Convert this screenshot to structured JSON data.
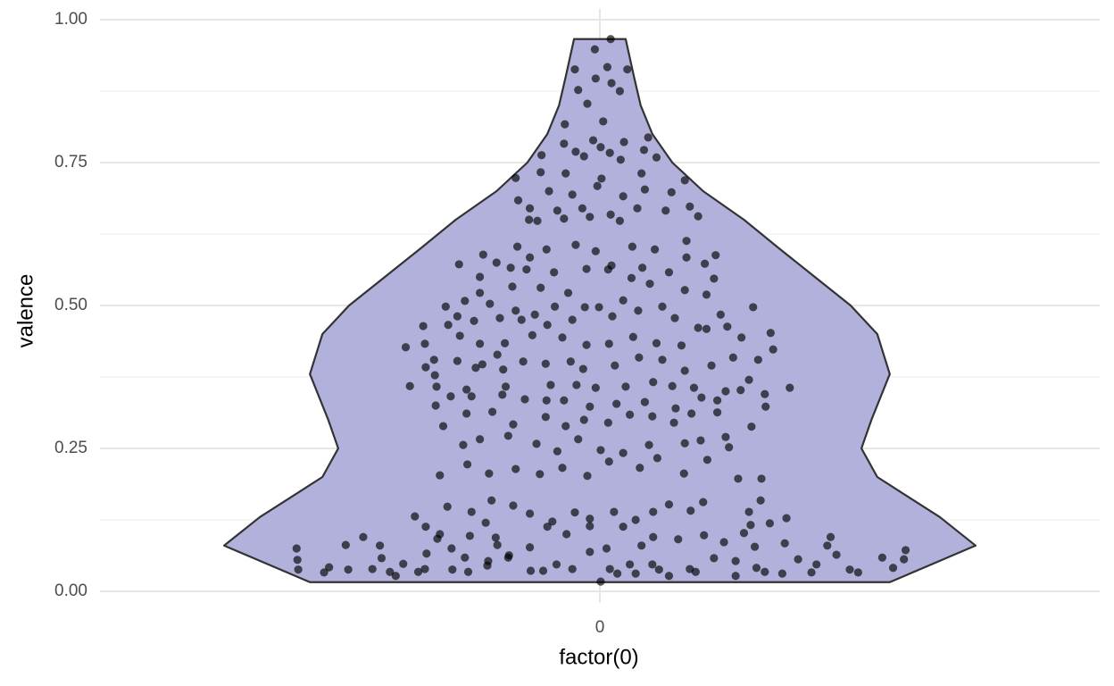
{
  "chart_data": {
    "type": "violin",
    "x_label": "factor(0)",
    "y_label": "valence",
    "categories": [
      "0"
    ],
    "xlim": [
      -0.6,
      0.6
    ],
    "ylim": [
      -0.02,
      1.02
    ],
    "yticks": [
      {
        "value": 0,
        "label": "0.00"
      },
      {
        "value": 0.25,
        "label": "0.25"
      },
      {
        "value": 0.5,
        "label": "0.50"
      },
      {
        "value": 0.75,
        "label": "0.75"
      },
      {
        "value": 1,
        "label": "1.00"
      }
    ],
    "minor_yticks": [
      0.125,
      0.375,
      0.625,
      0.875
    ],
    "grid": true,
    "violin": {
      "fill": "#b1b1dc",
      "stroke": "#333333",
      "y": [
        0.016,
        0.08,
        0.13,
        0.17,
        0.2,
        0.25,
        0.3,
        0.38,
        0.45,
        0.5,
        0.55,
        0.6,
        0.65,
        0.7,
        0.75,
        0.8,
        0.85,
        0.9,
        0.966
      ],
      "half_width": [
        0.348,
        0.451,
        0.408,
        0.365,
        0.333,
        0.314,
        0.326,
        0.348,
        0.333,
        0.301,
        0.258,
        0.215,
        0.173,
        0.124,
        0.087,
        0.063,
        0.049,
        0.041,
        0.031
      ]
    },
    "points": {
      "color": "#000000",
      "opacity": 0.65,
      "x": [
        0.013,
        -0.006,
        -0.03,
        0.009,
        0.033,
        -0.005,
        0.014,
        -0.026,
        0.024,
        -0.015,
        -0.042,
        0.004,
        -0.008,
        -0.043,
        0.029,
        0.058,
        -0.029,
        -0.019,
        0.001,
        0.012,
        0.053,
        0.068,
        0.025,
        -0.07,
        -0.101,
        -0.071,
        -0.041,
        -0.003,
        0.002,
        0.102,
        0.05,
        -0.061,
        -0.033,
        -0.098,
        -0.084,
        -0.051,
        -0.021,
        0.028,
        0.054,
        0.086,
        -0.085,
        -0.075,
        -0.043,
        -0.012,
        0.013,
        0.024,
        0.045,
        0.079,
        0.108,
        0.118,
        -0.099,
        -0.084,
        -0.064,
        -0.029,
        -0.005,
        0.039,
        0.066,
        0.104,
        0.104,
        0.139,
        -0.088,
        -0.107,
        -0.055,
        -0.016,
        0.014,
        0.051,
        0.083,
        0.126,
        -0.14,
        -0.124,
        -0.169,
        -0.144,
        -0.105,
        -0.071,
        -0.038,
        0.01,
        0.038,
        0.06,
        0.102,
        0.137,
        -0.144,
        -0.162,
        -0.132,
        -0.101,
        -0.078,
        -0.054,
        -0.018,
        -0.001,
        0.028,
        0.075,
        0.128,
        -0.185,
        -0.171,
        -0.151,
        -0.12,
        -0.094,
        -0.063,
        -0.033,
        0.015,
        0.046,
        0.09,
        0.118,
        0.145,
        0.184,
        -0.212,
        -0.182,
        -0.21,
        -0.168,
        -0.144,
        -0.114,
        -0.081,
        -0.045,
        -0.016,
        0.011,
        0.04,
        0.068,
        0.098,
        0.128,
        0.153,
        0.17,
        0.205,
        -0.233,
        -0.199,
        -0.171,
        -0.141,
        -0.123,
        -0.092,
        -0.065,
        -0.035,
        -0.02,
        0.018,
        0.047,
        0.075,
        0.102,
        0.134,
        0.16,
        0.19,
        0.208,
        -0.209,
        -0.198,
        -0.116,
        -0.149,
        -0.228,
        -0.196,
        -0.16,
        -0.113,
        -0.059,
        -0.028,
        -0.005,
        0.031,
        0.064,
        0.087,
        0.113,
        0.151,
        0.179,
        0.228,
        -0.197,
        -0.179,
        -0.154,
        -0.117,
        -0.09,
        -0.064,
        -0.043,
        -0.012,
        0.02,
        0.054,
        0.091,
        0.122,
        0.141,
        0.169,
        0.198,
        0.199,
        -0.188,
        -0.16,
        -0.129,
        -0.104,
        -0.065,
        -0.041,
        -0.019,
        0.01,
        0.036,
        0.063,
        0.089,
        0.11,
        0.141,
        0.182,
        -0.164,
        -0.144,
        -0.11,
        -0.076,
        -0.051,
        -0.026,
        0.001,
        0.028,
        0.059,
        0.102,
        0.121,
        0.155,
        0.151,
        -0.192,
        -0.159,
        -0.133,
        -0.101,
        -0.072,
        -0.045,
        -0.015,
        0.011,
        0.048,
        0.069,
        0.101,
        0.129,
        0.166,
        0.194,
        -0.183,
        -0.154,
        -0.13,
        -0.104,
        -0.084,
        -0.057,
        -0.03,
        -0.012,
        0.017,
        0.043,
        0.064,
        0.083,
        0.109,
        0.124,
        0.179,
        0.193,
        -0.222,
        -0.209,
        -0.195,
        -0.192,
        -0.178,
        -0.156,
        -0.137,
        -0.125,
        -0.123,
        -0.109,
        -0.084,
        -0.063,
        -0.04,
        -0.012,
        0.008,
        0.028,
        0.05,
        0.064,
        0.094,
        0.125,
        0.149,
        0.173,
        0.181,
        0.186,
        0.222,
        0.224,
        0.204,
        -0.364,
        -0.363,
        -0.362,
        -0.331,
        -0.325,
        -0.305,
        -0.302,
        -0.284,
        -0.264,
        -0.262,
        -0.273,
        -0.252,
        -0.245,
        -0.236,
        -0.218,
        -0.21,
        -0.208,
        -0.177,
        -0.162,
        -0.158,
        -0.135,
        -0.134,
        -0.11,
        -0.083,
        -0.068,
        -0.052,
        -0.033,
        -0.012,
        0.012,
        0.021,
        0.036,
        0.043,
        0.063,
        0.071,
        0.083,
        0.108,
        0.115,
        0.137,
        0.163,
        0.163,
        0.188,
        0.198,
        0.219,
        0.238,
        0.254,
        0.26,
        0.277,
        0.273,
        0.284,
        0.3,
        0.31,
        0.339,
        0.352,
        0.365,
        0.367,
        0.001
      ],
      "y": [
        0.966,
        0.948,
        0.913,
        0.917,
        0.913,
        0.897,
        0.889,
        0.877,
        0.875,
        0.853,
        0.817,
        0.822,
        0.789,
        0.783,
        0.786,
        0.794,
        0.769,
        0.761,
        0.777,
        0.767,
        0.772,
        0.759,
        0.755,
        0.763,
        0.723,
        0.733,
        0.731,
        0.709,
        0.722,
        0.719,
        0.731,
        0.7,
        0.694,
        0.684,
        0.67,
        0.666,
        0.67,
        0.691,
        0.703,
        0.698,
        0.65,
        0.648,
        0.652,
        0.655,
        0.659,
        0.648,
        0.67,
        0.666,
        0.673,
        0.656,
        0.603,
        0.584,
        0.598,
        0.606,
        0.595,
        0.603,
        0.598,
        0.613,
        0.584,
        0.588,
        0.563,
        0.566,
        0.558,
        0.564,
        0.57,
        0.566,
        0.558,
        0.573,
        0.589,
        0.575,
        0.572,
        0.55,
        0.533,
        0.531,
        0.522,
        0.563,
        0.548,
        0.538,
        0.527,
        0.547,
        0.522,
        0.508,
        0.503,
        0.491,
        0.484,
        0.498,
        0.497,
        0.497,
        0.509,
        0.498,
        0.519,
        0.498,
        0.481,
        0.473,
        0.478,
        0.475,
        0.466,
        0.475,
        0.481,
        0.491,
        0.478,
        0.461,
        0.484,
        0.497,
        0.464,
        0.466,
        0.433,
        0.447,
        0.433,
        0.434,
        0.448,
        0.444,
        0.431,
        0.433,
        0.445,
        0.434,
        0.43,
        0.459,
        0.463,
        0.444,
        0.452,
        0.427,
        0.405,
        0.403,
        0.397,
        0.414,
        0.402,
        0.398,
        0.402,
        0.389,
        0.395,
        0.409,
        0.405,
        0.386,
        0.395,
        0.409,
        0.405,
        0.423,
        0.392,
        0.378,
        0.388,
        0.391,
        0.359,
        0.358,
        0.353,
        0.358,
        0.361,
        0.361,
        0.356,
        0.358,
        0.366,
        0.359,
        0.356,
        0.35,
        0.37,
        0.356,
        0.325,
        0.341,
        0.341,
        0.344,
        0.336,
        0.334,
        0.334,
        0.323,
        0.328,
        0.331,
        0.32,
        0.339,
        0.334,
        0.352,
        0.345,
        0.323,
        0.289,
        0.311,
        0.314,
        0.292,
        0.305,
        0.289,
        0.3,
        0.295,
        0.309,
        0.306,
        0.295,
        0.311,
        0.313,
        0.288,
        0.256,
        0.266,
        0.272,
        0.258,
        0.245,
        0.266,
        0.247,
        0.242,
        0.256,
        0.259,
        0.264,
        0.252,
        0.27,
        0.203,
        0.222,
        0.206,
        0.214,
        0.205,
        0.216,
        0.202,
        0.227,
        0.216,
        0.233,
        0.206,
        0.23,
        0.197,
        0.197,
        0.148,
        0.139,
        0.159,
        0.15,
        0.136,
        0.122,
        0.138,
        0.127,
        0.139,
        0.125,
        0.139,
        0.152,
        0.141,
        0.156,
        0.139,
        0.159,
        0.131,
        0.113,
        0.092,
        0.1,
        0.075,
        0.097,
        0.12,
        0.094,
        0.081,
        0.063,
        0.077,
        0.113,
        0.1,
        0.114,
        0.075,
        0.113,
        0.08,
        0.095,
        0.091,
        0.098,
        0.086,
        0.102,
        0.116,
        0.078,
        0.084,
        0.128,
        0.119,
        0.075,
        0.055,
        0.038,
        0.033,
        0.042,
        0.081,
        0.038,
        0.095,
        0.08,
        0.058,
        0.039,
        0.034,
        0.027,
        0.048,
        0.034,
        0.039,
        0.066,
        0.038,
        0.059,
        0.034,
        0.045,
        0.053,
        0.059,
        0.036,
        0.036,
        0.047,
        0.039,
        0.069,
        0.039,
        0.031,
        0.047,
        0.031,
        0.047,
        0.038,
        0.027,
        0.039,
        0.034,
        0.058,
        0.053,
        0.027,
        0.041,
        0.034,
        0.031,
        0.056,
        0.033,
        0.047,
        0.095,
        0.08,
        0.064,
        0.038,
        0.033,
        0.059,
        0.041,
        0.056,
        0.072,
        0.017
      ]
    }
  }
}
